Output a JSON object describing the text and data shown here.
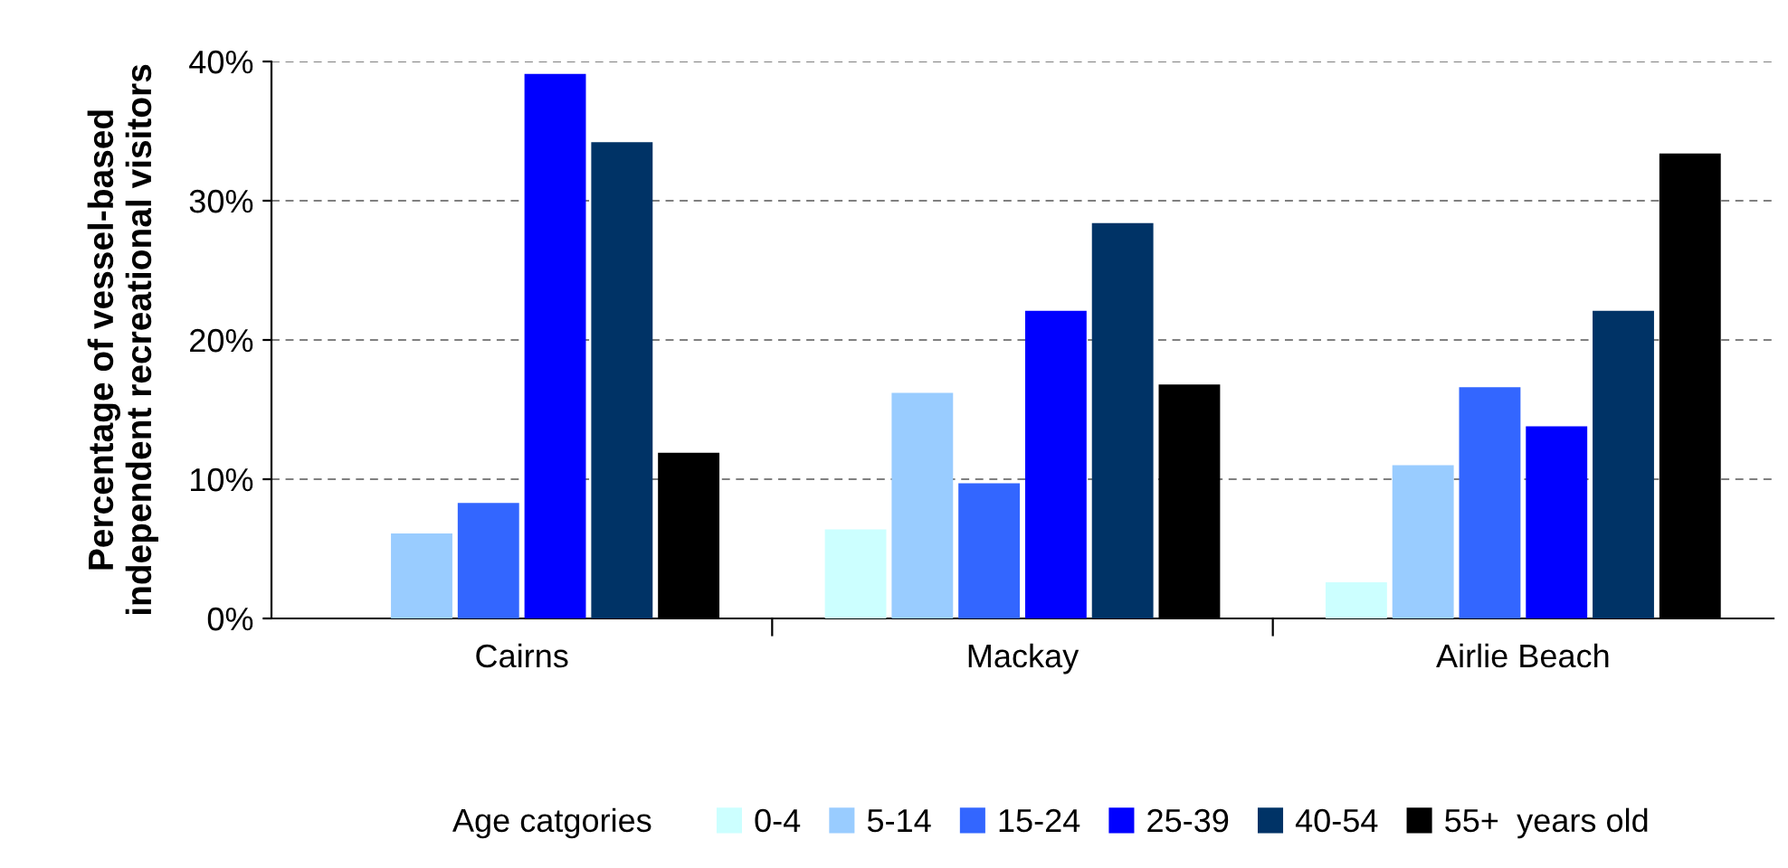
{
  "chart_data": {
    "type": "bar",
    "ylabel": "Percentage of vessel-based\nindependent recreational visitors",
    "categories": [
      "Cairns",
      "Mackay",
      "Airlie Beach"
    ],
    "series": [
      {
        "name": "0-4",
        "color": "#ccffff",
        "values": [
          0,
          6.4,
          2.6
        ]
      },
      {
        "name": "5-14",
        "color": "#99ccff",
        "values": [
          6.1,
          16.2,
          11.0
        ]
      },
      {
        "name": "15-24",
        "color": "#3366ff",
        "values": [
          8.3,
          9.7,
          16.6
        ]
      },
      {
        "name": "25-39",
        "color": "#0000ff",
        "values": [
          39.1,
          22.1,
          13.8
        ]
      },
      {
        "name": "40-54",
        "color": "#003366",
        "values": [
          34.2,
          28.4,
          22.1
        ]
      },
      {
        "name": "55+",
        "color": "#000000",
        "values": [
          11.9,
          16.8,
          33.4
        ]
      }
    ],
    "ylim": [
      0,
      40
    ],
    "yticks": [
      {
        "value": 0,
        "label": "0%"
      },
      {
        "value": 10,
        "label": "10%"
      },
      {
        "value": 20,
        "label": "20%"
      },
      {
        "value": 30,
        "label": "30%"
      },
      {
        "value": 40,
        "label": "40%"
      }
    ],
    "grid": "y",
    "legend": "bottom",
    "legend_title": "Age catgories",
    "annotations": [
      "years old"
    ]
  }
}
